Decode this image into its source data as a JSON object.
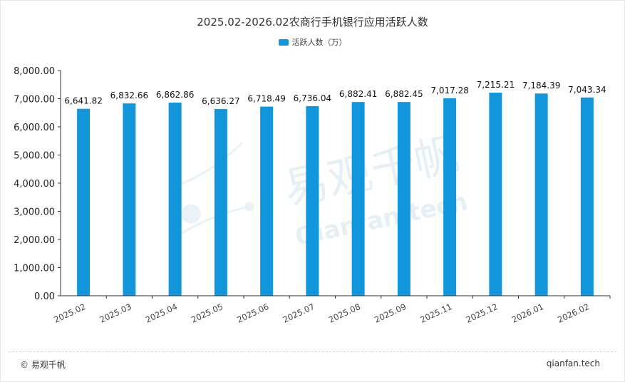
{
  "colors": {
    "bar": "#1296db",
    "axis": "#333333",
    "watermark": "#cfe3f0"
  },
  "chart_data": {
    "type": "bar",
    "title": "2025.02-2026.02农商行手机银行应用活跃人数",
    "legend": "活跃人数（万）",
    "legend_position": "top-center",
    "categories": [
      "2025.02",
      "2025.03",
      "2025.04",
      "2025.05",
      "2025.06",
      "2025.07",
      "2025.08",
      "2025.09",
      "2025.11",
      "2025.12",
      "2026.01",
      "2026.02"
    ],
    "values": [
      6641.82,
      6832.66,
      6862.86,
      6636.27,
      6718.49,
      6736.04,
      6882.41,
      6882.45,
      7017.28,
      7215.21,
      7184.39,
      7043.34
    ],
    "data_labels": [
      "6,641.82",
      "6,832.66",
      "6,862.86",
      "6,636.27",
      "6,718.49",
      "6,736.04",
      "6,882.41",
      "6,882.45",
      "7,017.28",
      "7,215.21",
      "7,184.39",
      "7,043.34"
    ],
    "yticks": [
      0,
      1000,
      2000,
      3000,
      4000,
      5000,
      6000,
      7000,
      8000
    ],
    "ytick_labels": [
      "0.00",
      "1,000.00",
      "2,000.00",
      "3,000.00",
      "4,000.00",
      "5,000.00",
      "6,000.00",
      "7,000.00",
      "8,000.00"
    ],
    "ylim": [
      0,
      8000
    ],
    "xlabel": "",
    "ylabel": "",
    "grid": false
  },
  "watermark": {
    "brand": "易观千帆",
    "domain": "Qianfan.tech"
  },
  "footer": {
    "left": "© 易观千帆",
    "right": "qianfan.tech"
  }
}
